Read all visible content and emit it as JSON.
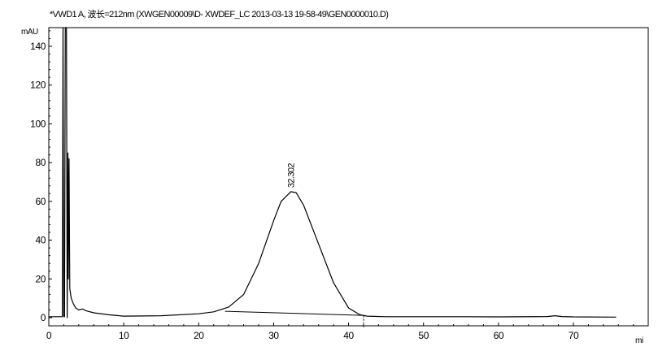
{
  "chart_data": {
    "type": "line",
    "title": "*VWD1 A, 波长=212nm (XWGEN00009\\D- XWDEF_LC 2013-03-13 19-58-49\\GEN0000010.D)",
    "ylabel_unit": "mAU",
    "xlabel_unit": "mi",
    "xlim": [
      0,
      80
    ],
    "ylim": [
      -5,
      150
    ],
    "x_ticks": [
      0,
      10,
      20,
      30,
      40,
      50,
      60,
      70
    ],
    "y_ticks": [
      0,
      20,
      40,
      60,
      80,
      100,
      120,
      140
    ],
    "grid": false,
    "peak_label": "32.302",
    "series": [
      {
        "values_x": [
          0,
          1.8,
          1.9,
          2.0,
          2.1,
          2.2,
          2.35,
          2.45,
          2.55,
          2.6,
          2.7,
          2.8,
          3.0,
          3.3,
          3.6,
          4.0,
          4.5,
          5.0,
          6.0,
          8.0,
          10.0,
          15.0,
          20.0,
          22.0,
          24.0,
          26.0,
          28.0,
          30.0,
          31.0,
          32.3,
          33.0,
          34.0,
          36.0,
          38.0,
          40.0,
          41.5,
          42.5,
          45.0,
          55.0,
          60.0,
          66.5,
          67.5,
          68.5,
          70.0,
          75.7
        ],
        "values_y": [
          0.5,
          0.5,
          150,
          0.5,
          0.5,
          150,
          150,
          0,
          85,
          20,
          82,
          15,
          10,
          7,
          5,
          4,
          4.5,
          3.5,
          2.5,
          1.5,
          0.8,
          1.0,
          2.0,
          3.0,
          5.5,
          12,
          28,
          50,
          60,
          65,
          64.5,
          58,
          38,
          18,
          5,
          1.5,
          0.8,
          0.5,
          0.5,
          0.4,
          0.6,
          1.0,
          0.6,
          0.4,
          0.3
        ]
      }
    ],
    "baseline": {
      "x": [
        23.5,
        41.8
      ],
      "y": [
        3.3,
        1.2
      ]
    },
    "peak_marker_x": 42.0
  }
}
